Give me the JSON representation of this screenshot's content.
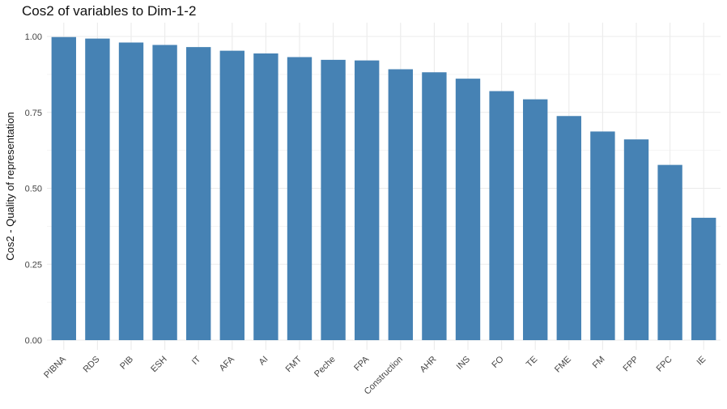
{
  "chart_data": {
    "type": "bar",
    "title": "Cos2 of variables to Dim-1-2",
    "xlabel": "",
    "ylabel": "Cos2 - Quality of representation",
    "ylim": [
      0,
      1.0
    ],
    "yticks": [
      "0.00",
      "0.25",
      "0.50",
      "0.75",
      "1.00"
    ],
    "ytick_values": [
      0,
      0.25,
      0.5,
      0.75,
      1.0
    ],
    "categories": [
      "PIBNA",
      "RDS",
      "PIB",
      "ESH",
      "IT",
      "AFA",
      "AI",
      "FMT",
      "Peche",
      "FPA",
      "Construction",
      "AHR",
      "INS",
      "FO",
      "TE",
      "FME",
      "FM",
      "FPP",
      "FPC",
      "IE"
    ],
    "values": [
      0.998,
      0.993,
      0.98,
      0.972,
      0.965,
      0.953,
      0.944,
      0.932,
      0.923,
      0.921,
      0.892,
      0.882,
      0.861,
      0.82,
      0.793,
      0.738,
      0.687,
      0.661,
      0.577,
      0.403
    ],
    "bar_color": "#4682B4",
    "grid": true,
    "grid_color": "#EBEBEB",
    "legend": "none"
  }
}
